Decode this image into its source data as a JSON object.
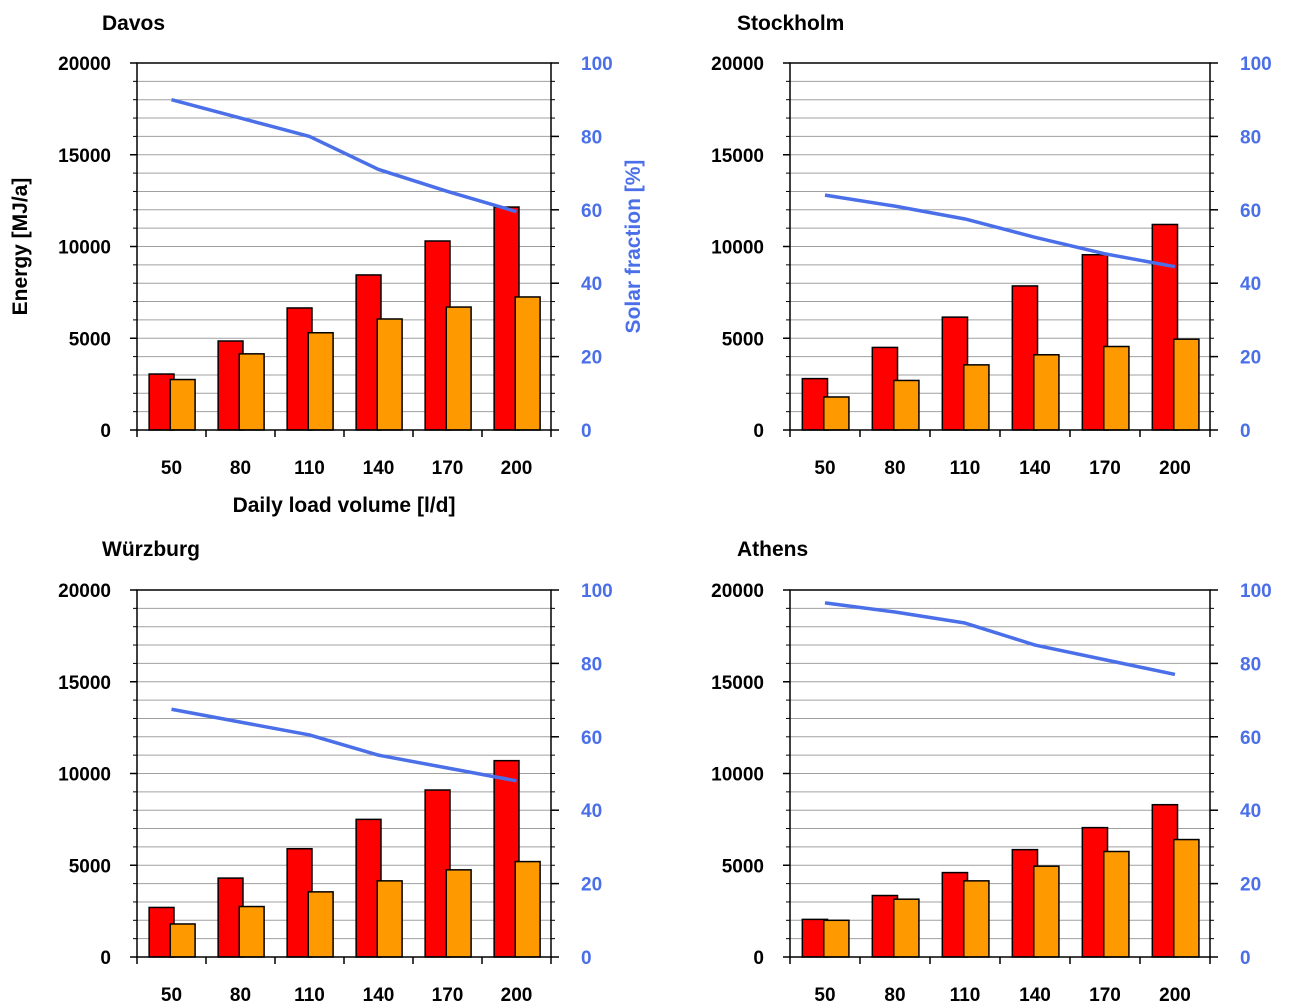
{
  "chart_data": [
    {
      "type": "bar",
      "title": "Davos",
      "xlabel": "Daily load volume [l/d]",
      "ylabel": "Energy [MJ/a]",
      "y2label": "Solar fraction [%]",
      "categories": [
        "50",
        "80",
        "110",
        "140",
        "170",
        "200"
      ],
      "ylim": [
        0,
        20000
      ],
      "y_ticks": [
        "0",
        "5000",
        "10000",
        "15000",
        "20000"
      ],
      "y2lim": [
        0,
        100
      ],
      "y2_ticks": [
        "0",
        "20",
        "40",
        "60",
        "80",
        "100"
      ],
      "grid": true,
      "series": [
        {
          "type": "bar",
          "axis": "left",
          "color": "#ff0000",
          "values": [
            3050,
            4850,
            6650,
            8450,
            10300,
            12150
          ]
        },
        {
          "type": "bar",
          "axis": "left",
          "color": "#ff9900",
          "values": [
            2750,
            4150,
            5300,
            6050,
            6700,
            7250
          ]
        },
        {
          "type": "line",
          "axis": "right",
          "color": "#4a6fe8",
          "values": [
            90,
            85,
            80,
            71,
            65,
            59.5
          ]
        }
      ]
    },
    {
      "type": "bar",
      "title": "Stockholm",
      "xlabel": "",
      "ylabel": "",
      "y2label": "",
      "categories": [
        "50",
        "80",
        "110",
        "140",
        "170",
        "200"
      ],
      "ylim": [
        0,
        20000
      ],
      "y_ticks": [
        "0",
        "5000",
        "10000",
        "15000",
        "20000"
      ],
      "y2lim": [
        0,
        100
      ],
      "y2_ticks": [
        "0",
        "20",
        "40",
        "60",
        "80",
        "100"
      ],
      "grid": true,
      "series": [
        {
          "type": "bar",
          "axis": "left",
          "color": "#ff0000",
          "values": [
            2800,
            4500,
            6150,
            7850,
            9550,
            11200
          ]
        },
        {
          "type": "bar",
          "axis": "left",
          "color": "#ff9900",
          "values": [
            1800,
            2700,
            3550,
            4100,
            4550,
            4950
          ]
        },
        {
          "type": "line",
          "axis": "right",
          "color": "#4a6fe8",
          "values": [
            64,
            61,
            57.5,
            52.5,
            48,
            44.5
          ]
        }
      ]
    },
    {
      "type": "bar",
      "title": "Würzburg",
      "xlabel": "",
      "ylabel": "",
      "y2label": "",
      "categories": [
        "50",
        "80",
        "110",
        "140",
        "170",
        "200"
      ],
      "ylim": [
        0,
        20000
      ],
      "y_ticks": [
        "0",
        "5000",
        "10000",
        "15000",
        "20000"
      ],
      "y2lim": [
        0,
        100
      ],
      "y2_ticks": [
        "0",
        "20",
        "40",
        "60",
        "80",
        "100"
      ],
      "grid": true,
      "series": [
        {
          "type": "bar",
          "axis": "left",
          "color": "#ff0000",
          "values": [
            2700,
            4300,
            5900,
            7500,
            9100,
            10700
          ]
        },
        {
          "type": "bar",
          "axis": "left",
          "color": "#ff9900",
          "values": [
            1800,
            2750,
            3550,
            4150,
            4750,
            5200
          ]
        },
        {
          "type": "line",
          "axis": "right",
          "color": "#4a6fe8",
          "values": [
            67.5,
            64,
            60.5,
            55,
            51.5,
            48
          ]
        }
      ]
    },
    {
      "type": "bar",
      "title": "Athens",
      "xlabel": "",
      "ylabel": "",
      "y2label": "",
      "categories": [
        "50",
        "80",
        "110",
        "140",
        "170",
        "200"
      ],
      "ylim": [
        0,
        20000
      ],
      "y_ticks": [
        "0",
        "5000",
        "10000",
        "15000",
        "20000"
      ],
      "y2lim": [
        0,
        100
      ],
      "y2_ticks": [
        "0",
        "20",
        "40",
        "60",
        "80",
        "100"
      ],
      "grid": true,
      "series": [
        {
          "type": "bar",
          "axis": "left",
          "color": "#ff0000",
          "values": [
            2050,
            3350,
            4600,
            5850,
            7050,
            8300
          ]
        },
        {
          "type": "bar",
          "axis": "left",
          "color": "#ff9900",
          "values": [
            2000,
            3150,
            4150,
            4950,
            5750,
            6400
          ]
        },
        {
          "type": "line",
          "axis": "right",
          "color": "#4a6fe8",
          "values": [
            96.5,
            94,
            91,
            85,
            81,
            77
          ]
        }
      ]
    }
  ],
  "colors": {
    "axis_right": "#4a6fe8",
    "gridline": "#a0a0a0",
    "frame": "#000000"
  }
}
